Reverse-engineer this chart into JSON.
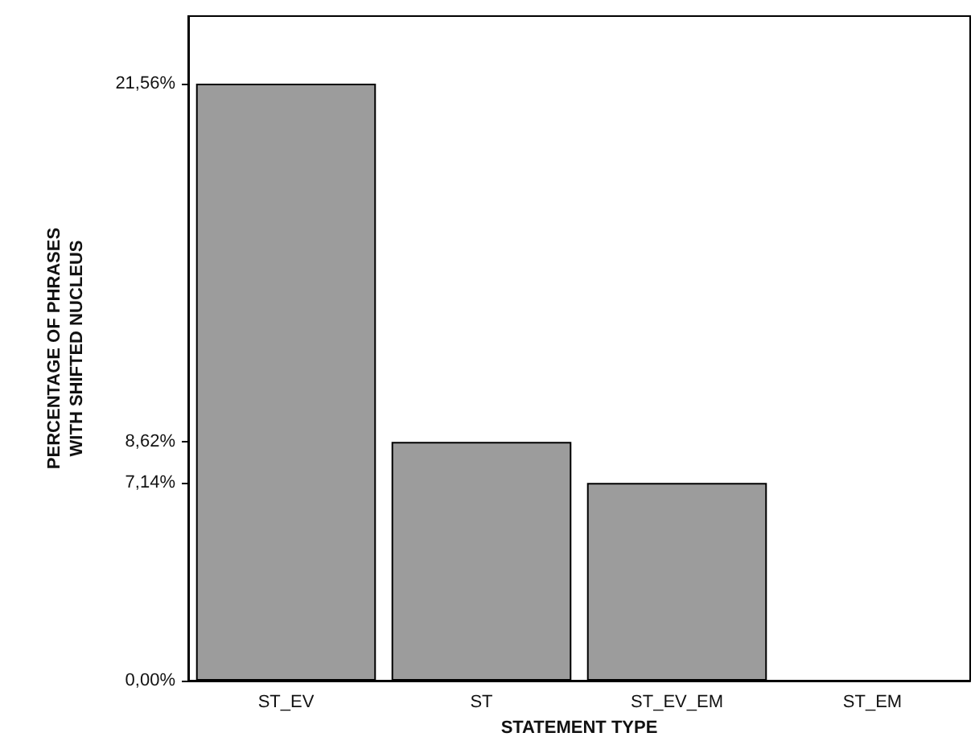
{
  "chart_data": {
    "type": "bar",
    "xlabel": "STATEMENT TYPE",
    "ylabel": "PERCENTAGE OF PHRASES WITH SHIFTED NUCLEUS",
    "categories": [
      "ST_EV",
      "ST",
      "ST_EV_EM",
      "ST_EM"
    ],
    "values": [
      21.56,
      8.62,
      7.14,
      0
    ],
    "color": "#9c9c9c",
    "ylim": [
      0,
      24
    ],
    "yticks": [
      {
        "value": 0,
        "label": "0,00%"
      },
      {
        "value": 7.14,
        "label": "7,14%"
      },
      {
        "value": 8.62,
        "label": "8,62%"
      },
      {
        "value": 21.56,
        "label": "21,56%"
      }
    ]
  }
}
